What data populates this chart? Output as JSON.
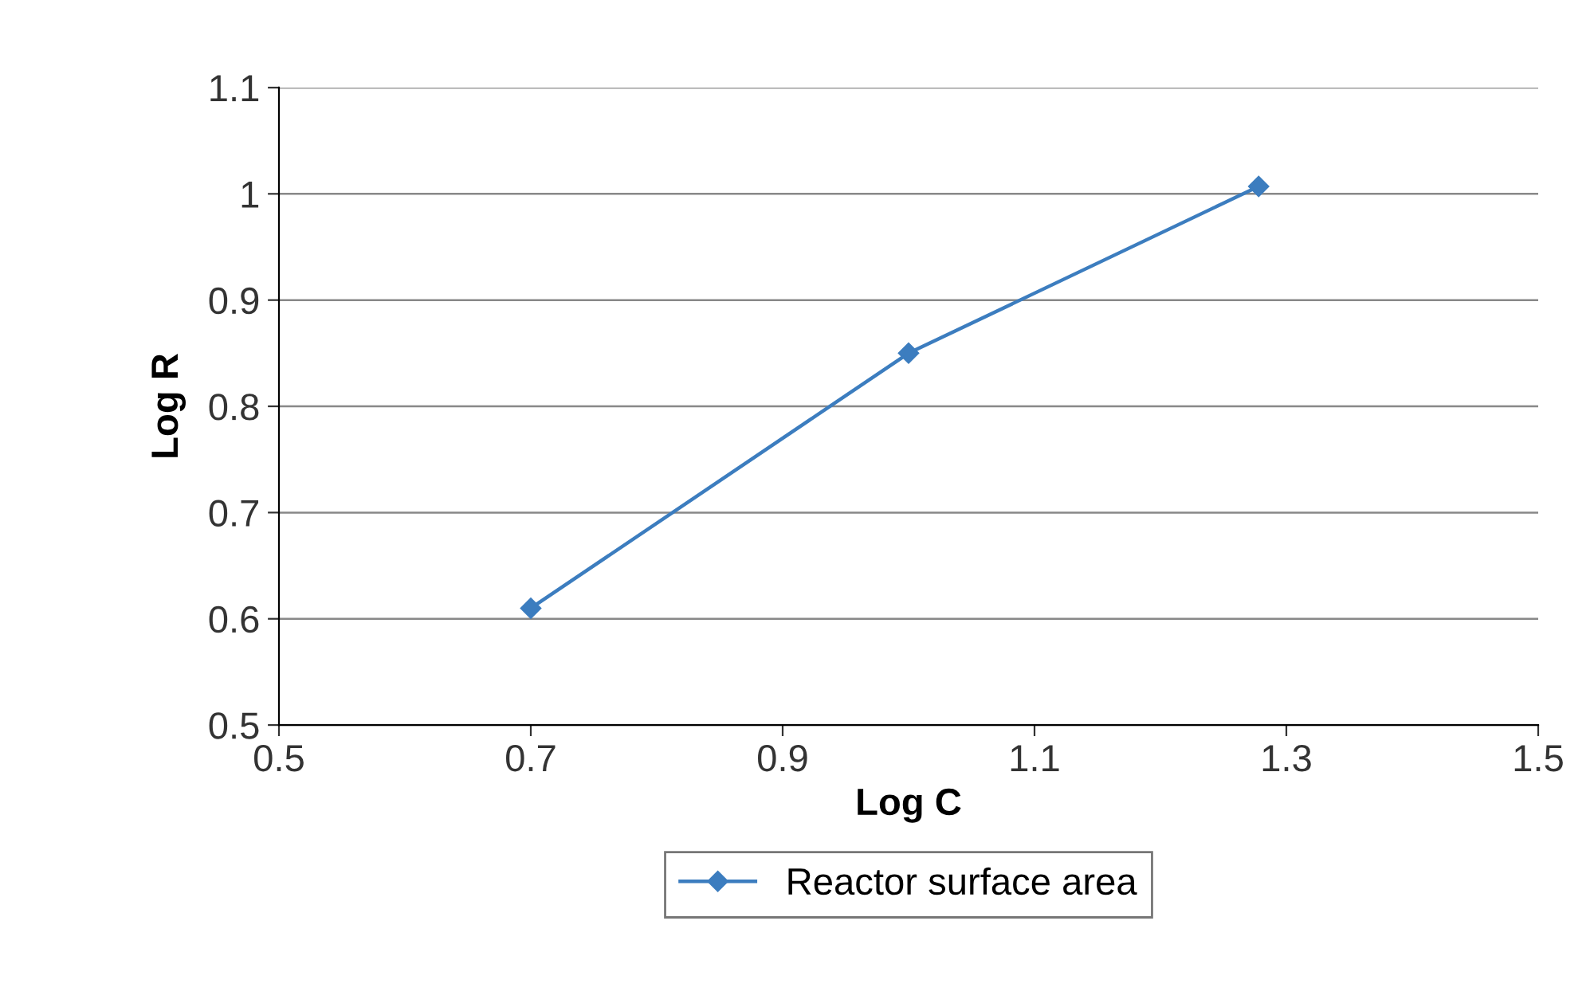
{
  "chart_data": {
    "type": "line",
    "xlabel": "Log C",
    "ylabel": "Log R",
    "x": [
      0.7,
      1.0,
      1.278
    ],
    "series": [
      {
        "name": "Reactor surface area",
        "color": "#3c7dbf",
        "values": [
          0.61,
          0.85,
          1.007
        ]
      }
    ],
    "xlim": [
      0.5,
      1.5
    ],
    "xticks": [
      0.5,
      0.7,
      0.9,
      1.1,
      1.3,
      1.5
    ],
    "ylim": [
      0.5,
      1.1
    ],
    "yticks": [
      0.5,
      0.6,
      0.7,
      0.8,
      0.9,
      1,
      1.1
    ],
    "grid": "y",
    "legend": "bottom",
    "marker": "diamond",
    "line_style": "solid"
  }
}
